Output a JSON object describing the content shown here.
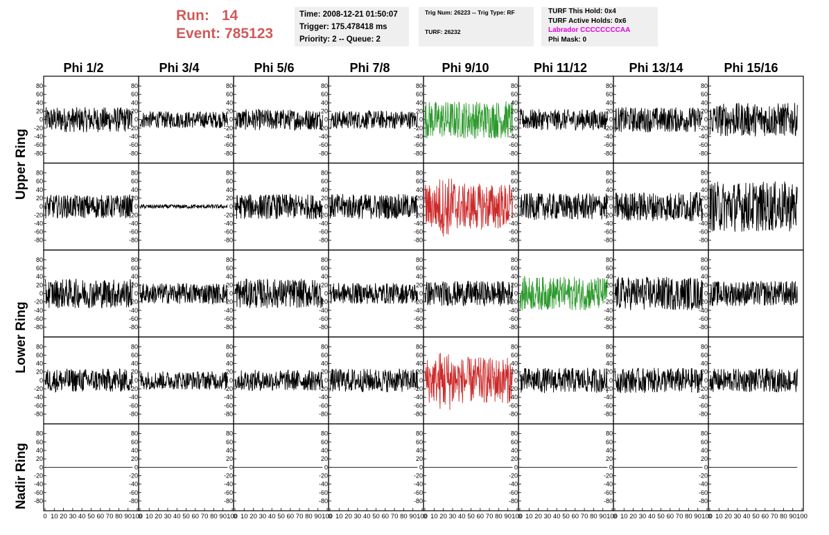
{
  "header": {
    "run_label": "Run:",
    "run_value": "14",
    "event_label": "Event:",
    "event_value": "785123"
  },
  "info_time": {
    "time": "Time: 2008-12-21 01:50:07",
    "trigger": "Trigger: 175.478418 ms",
    "priority": "Priority: 2 -- Queue: 2"
  },
  "info_trig": {
    "trig": "Trig Num: 26223 -- Trig Type: RF",
    "turf": "TURF: 26232"
  },
  "info_turf": {
    "this_hold": "TURF This Hold: 0x4",
    "active_holds": "TURF Active Holds: 0x6",
    "labrador": "Labrador CCCCCCCCAA",
    "phi_mask": "Phi Mask: 0"
  },
  "colors": {
    "red": "#d05a5a",
    "magenta": "#e000e0",
    "trace": "#000000",
    "green": "#2e9a2e",
    "redtrace": "#cc2a2a"
  },
  "chart_data": {
    "type": "line",
    "columns": [
      "Phi 1/2",
      "Phi 3/4",
      "Phi 5/6",
      "Phi 7/8",
      "Phi 9/10",
      "Phi 11/12",
      "Phi 13/14",
      "Phi 15/16"
    ],
    "ring_labels": [
      "Upper Ring",
      "Lower Ring",
      "Nadir Ring"
    ],
    "xlim": [
      0,
      100
    ],
    "ylim": [
      -90,
      90
    ],
    "x_ticks": [
      "0",
      "10",
      "20",
      "30",
      "40",
      "50",
      "60",
      "70",
      "80",
      "90",
      "100"
    ],
    "y_ticks": [
      "80",
      "60",
      "40",
      "20",
      "0",
      "-20",
      "-40",
      "-60",
      "-80"
    ],
    "rows": [
      {
        "amplitude": [
          30,
          20,
          25,
          22,
          45,
          25,
          30,
          40
        ],
        "color": [
          "black",
          "black",
          "black",
          "black",
          "green",
          "black",
          "black",
          "black"
        ]
      },
      {
        "amplitude": [
          28,
          5,
          30,
          30,
          55,
          32,
          35,
          60
        ],
        "color": [
          "black",
          "black",
          "black",
          "black",
          "red",
          "black",
          "black",
          "black"
        ]
      },
      {
        "amplitude": [
          35,
          25,
          35,
          25,
          30,
          40,
          40,
          30
        ],
        "color": [
          "black",
          "black",
          "black",
          "black",
          "black",
          "green",
          "black",
          "black"
        ]
      },
      {
        "amplitude": [
          28,
          22,
          25,
          28,
          55,
          30,
          30,
          28
        ],
        "color": [
          "black",
          "black",
          "black",
          "black",
          "red",
          "black",
          "black",
          "black"
        ]
      },
      {
        "amplitude": [
          0,
          0,
          0,
          0,
          0,
          0,
          0,
          0
        ],
        "color": [
          "black",
          "black",
          "black",
          "black",
          "black",
          "black",
          "black",
          "black"
        ]
      }
    ]
  }
}
